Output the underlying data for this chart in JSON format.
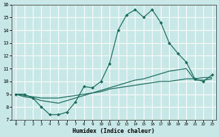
{
  "title": "",
  "xlabel": "Humidex (Indice chaleur)",
  "bg_color": "#c8e8e8",
  "grid_color": "#ffffff",
  "line_color": "#1a6b5a",
  "xlim": [
    -0.5,
    23.5
  ],
  "ylim": [
    7,
    16
  ],
  "yticks": [
    7,
    8,
    9,
    10,
    11,
    12,
    13,
    14,
    15,
    16
  ],
  "xticks": [
    0,
    1,
    2,
    3,
    4,
    5,
    6,
    7,
    8,
    9,
    10,
    11,
    12,
    13,
    14,
    15,
    16,
    17,
    18,
    19,
    20,
    21,
    22,
    23
  ],
  "series1_x": [
    0,
    1,
    2,
    3,
    4,
    5,
    6,
    7,
    8,
    9,
    10,
    11,
    12,
    13,
    14,
    15,
    16,
    17,
    18,
    19,
    20,
    21,
    22,
    23
  ],
  "series1_y": [
    9.0,
    9.0,
    8.7,
    8.0,
    7.4,
    7.4,
    7.6,
    8.4,
    9.6,
    9.5,
    10.0,
    11.4,
    14.0,
    15.2,
    15.6,
    15.0,
    15.6,
    14.6,
    13.0,
    12.2,
    11.5,
    10.2,
    10.0,
    10.5
  ],
  "series2_x": [
    0,
    1,
    2,
    3,
    4,
    5,
    6,
    7,
    8,
    9,
    10,
    11,
    12,
    13,
    14,
    15,
    16,
    17,
    18,
    19,
    20,
    21,
    22,
    23
  ],
  "series2_y": [
    9.0,
    8.8,
    8.7,
    8.5,
    8.4,
    8.3,
    8.5,
    8.7,
    8.9,
    9.1,
    9.3,
    9.5,
    9.7,
    9.9,
    10.1,
    10.2,
    10.4,
    10.6,
    10.8,
    10.9,
    11.0,
    10.1,
    10.1,
    10.2
  ],
  "series3_x": [
    0,
    1,
    2,
    3,
    4,
    5,
    6,
    7,
    8,
    9,
    10,
    11,
    12,
    13,
    14,
    15,
    16,
    17,
    18,
    19,
    20,
    21,
    22,
    23
  ],
  "series3_y": [
    9.0,
    8.9,
    8.8,
    8.7,
    8.7,
    8.7,
    8.8,
    8.9,
    9.0,
    9.1,
    9.2,
    9.4,
    9.5,
    9.6,
    9.7,
    9.8,
    9.9,
    10.0,
    10.0,
    10.1,
    10.2,
    10.2,
    10.3,
    10.3
  ]
}
